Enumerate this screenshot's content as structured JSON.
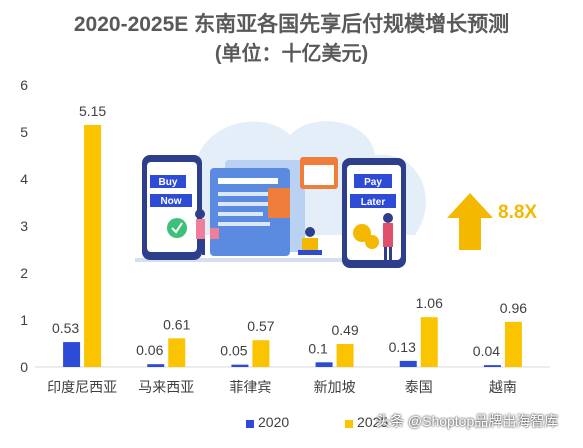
{
  "header": {
    "title_line1": "2020-2025E 东南亚各国先享后付规模增长预测",
    "title_line2": "(单位：十亿美元)"
  },
  "growth_badge": "8.8X",
  "watermark": "头条 @Shoptop品牌出海智库",
  "legend": {
    "series1_label": "2020",
    "series2_label": "2025"
  },
  "colors": {
    "series_2020": "#2e4bd6",
    "series_2025": "#fbc400",
    "text": "#404040",
    "title": "#595959"
  },
  "illustration": {
    "buy_now_sign": "Buy Now",
    "pay_later_sign": "Pay Later"
  },
  "chart_data": {
    "type": "bar",
    "title": "2020-2025E 东南亚各国先享后付规模增长预测 (单位：十亿美元)",
    "categories": [
      "印度尼西亚",
      "马来西亚",
      "菲律宾",
      "新加坡",
      "泰国",
      "越南"
    ],
    "series": [
      {
        "name": "2020",
        "values": [
          0.53,
          0.06,
          0.05,
          0.1,
          0.13,
          0.04
        ]
      },
      {
        "name": "2025",
        "values": [
          5.15,
          0.61,
          0.57,
          0.49,
          1.06,
          0.96
        ]
      }
    ],
    "y_ticks": [
      0,
      1,
      2,
      3,
      4,
      5,
      6
    ],
    "ylim": [
      0,
      6
    ],
    "grid": false,
    "legend_position": "bottom"
  }
}
